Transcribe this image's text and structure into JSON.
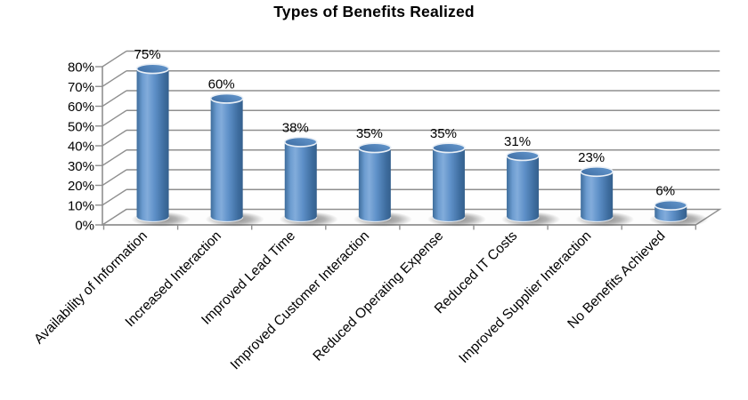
{
  "chart_data": {
    "type": "bar",
    "style": "3d-cylinder",
    "title": "Types of Benefits Realized",
    "categories": [
      "Availability of Information",
      "Increased Interaction",
      "Improved Lead Time",
      "Improved Customer Interaction",
      "Reduced Operating Expense",
      "Reduced IT Costs",
      "Improved Supplier Interaction",
      "No Benefits Achieved"
    ],
    "values": [
      75,
      60,
      38,
      35,
      35,
      31,
      23,
      6
    ],
    "data_labels": [
      "75%",
      "60%",
      "38%",
      "35%",
      "35%",
      "31%",
      "23%",
      "6%"
    ],
    "ytick_values": [
      0,
      10,
      20,
      30,
      40,
      50,
      60,
      70,
      80
    ],
    "ytick_labels": [
      "0%",
      "10%",
      "20%",
      "30%",
      "40%",
      "50%",
      "60%",
      "70%",
      "80%"
    ],
    "ylim": [
      0,
      80
    ],
    "xlabel": "",
    "ylabel": "",
    "grid": true,
    "legend": "none",
    "colors": {
      "background": "#FFFFFF",
      "title_text": "#000000",
      "label_text": "#000000",
      "gridline": "#8F8F8F",
      "axis": "#8F8F8F",
      "floor_fill": "#FDFDFD",
      "bar_body_gradient": [
        "#3E6D9C",
        "#6C9CD0",
        "#82ACDB",
        "#5E90C8",
        "#3E6D9F",
        "#35608D"
      ],
      "bar_cap_gradient": [
        "#3F6FA5",
        "#6496CC"
      ],
      "bar_cap_stroke": "#E9EFF6",
      "bar_bottom_rim": "rgba(255,255,255,0.75)",
      "shadow": "#464646"
    }
  }
}
